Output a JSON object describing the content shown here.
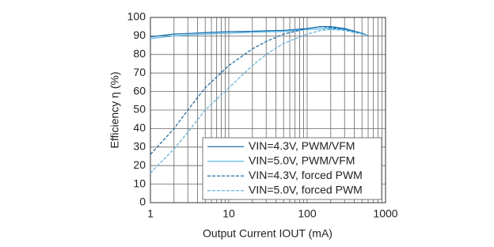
{
  "chart_data": {
    "type": "line",
    "xlabel": "Output Current IOUT (mA)",
    "ylabel": "Efficiency η (%)",
    "x": [
      1,
      2,
      3,
      5,
      10,
      20,
      30,
      50,
      100,
      150,
      200,
      300,
      500,
      600
    ],
    "xlim": [
      1,
      1000
    ],
    "xticks": [
      1,
      10,
      100,
      1000
    ],
    "xscale": "log",
    "ylim": [
      0,
      100
    ],
    "yticks": [
      0,
      10,
      20,
      30,
      40,
      50,
      60,
      70,
      80,
      90,
      100
    ],
    "grid": true,
    "legend": "lower right",
    "series": [
      {
        "name": "VIN=4.3V, PWM/VFM",
        "color": "#1a70b0",
        "dash": false,
        "values": [
          89.5,
          91,
          91.3,
          91.8,
          92.3,
          92.5,
          92.8,
          93,
          94,
          95,
          95,
          94,
          91.5,
          90
        ]
      },
      {
        "name": "VIN=5.0V, PWM/VFM",
        "color": "#5cb6e2",
        "dash": false,
        "values": [
          88.5,
          90,
          90.5,
          91,
          91.5,
          92,
          92.2,
          92.5,
          93.5,
          93.8,
          94,
          93.5,
          91.5,
          90
        ]
      },
      {
        "name": "VIN=4.3V, forced PWM",
        "color": "#1a70b0",
        "dash": true,
        "values": [
          26,
          40,
          50,
          62,
          74,
          83,
          87,
          91,
          94,
          95,
          94.5,
          93.5,
          91.5,
          90
        ]
      },
      {
        "name": "VIN=5.0V, forced PWM",
        "color": "#5cb6e2",
        "dash": true,
        "values": [
          16,
          29,
          38,
          50,
          62,
          74,
          80,
          86,
          91,
          93,
          93.5,
          93,
          91,
          90
        ]
      }
    ]
  }
}
